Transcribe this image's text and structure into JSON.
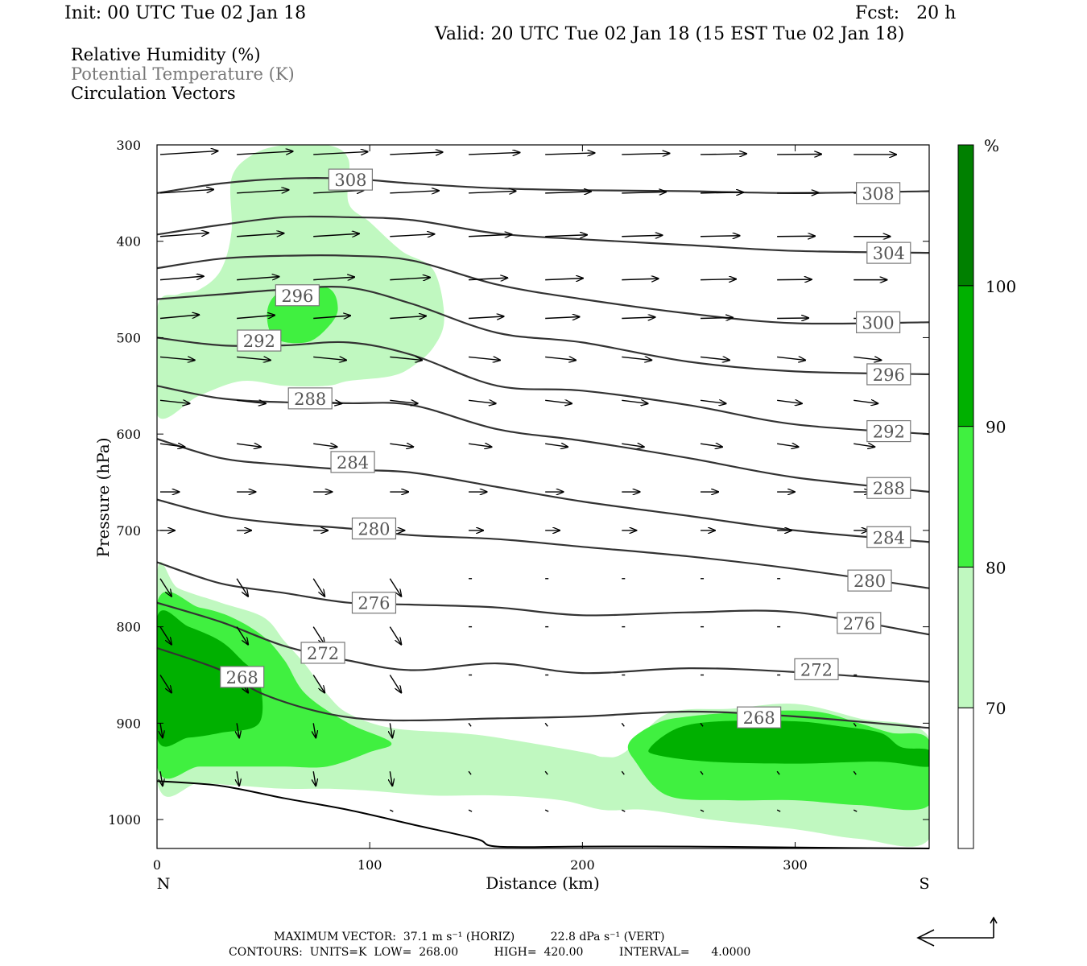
{
  "header": {
    "init": "Init: 00 UTC Tue 02 Jan 18",
    "fcst": "Fcst:   20 h",
    "valid": "Valid: 20 UTC Tue 02 Jan 18 (15 EST Tue 02 Jan 18)"
  },
  "legend": {
    "line1": "Relative Humidity (%)",
    "line2": "Potential Temperature (K)",
    "line3": "Circulation Vectors"
  },
  "footer": {
    "line1": "MAXIMUM VECTOR:  37.1 m s⁻¹ (HORIZ)          22.8 dPa s⁻¹ (VERT)",
    "line2": "CONTOURS:  UNITS=K  LOW=  268.00          HIGH=  420.00          INTERVAL=      4.0000"
  },
  "colors": {
    "rh_70": "#c0f8c0",
    "rh_80": "#40f040",
    "rh_90": "#00b000",
    "rh_100": "#008000",
    "theta_line": "#333333"
  },
  "chart_data": {
    "type": "cross-section",
    "xlabel": "Distance (km)",
    "ylabel": "Pressure (hPa)",
    "xlim": [
      0,
      363
    ],
    "ylim": [
      1030,
      300
    ],
    "x_ticks": [
      0,
      100,
      200,
      300
    ],
    "y_ticks": [
      300,
      400,
      500,
      600,
      700,
      800,
      900,
      1000
    ],
    "x_end_labels": {
      "left": "N",
      "right": "S"
    },
    "colorbar": {
      "unit": "%",
      "levels": [
        70,
        80,
        90,
        100
      ]
    },
    "theta_contours": [
      {
        "k": 268,
        "x": [
          0,
          30,
          50,
          80,
          110,
          160,
          200,
          250,
          300,
          363
        ],
        "p": [
          822,
          845,
          870,
          890,
          897,
          895,
          893,
          888,
          893,
          905
        ],
        "label": {
          "text": "268",
          "x": 283,
          "p": 894
        }
      },
      {
        "k": 272,
        "x": [
          0,
          30,
          60,
          90,
          120,
          160,
          200,
          250,
          300,
          363
        ],
        "p": [
          775,
          795,
          820,
          835,
          845,
          838,
          848,
          843,
          847,
          857
        ],
        "label": {
          "text": "272",
          "x": 310,
          "p": 844
        }
      },
      {
        "k": 276,
        "x": [
          0,
          30,
          60,
          90,
          120,
          160,
          200,
          250,
          300,
          363
        ],
        "p": [
          733,
          755,
          765,
          775,
          777,
          780,
          788,
          785,
          785,
          808
        ],
        "label": {
          "text": "276",
          "x": 330,
          "p": 796
        }
      },
      {
        "k": 280,
        "x": [
          0,
          30,
          60,
          90,
          120,
          160,
          200,
          250,
          300,
          363
        ],
        "p": [
          668,
          685,
          693,
          698,
          705,
          709,
          717,
          727,
          740,
          760
        ],
        "label": {
          "text": "280",
          "x": 335,
          "p": 752
        }
      },
      {
        "k": 284,
        "x": [
          0,
          30,
          60,
          90,
          120,
          160,
          200,
          250,
          300,
          363
        ],
        "p": [
          605,
          625,
          632,
          637,
          640,
          655,
          670,
          685,
          700,
          712
        ],
        "label": {
          "text": "284",
          "x": 344,
          "p": 707
        }
      },
      {
        "k": 288,
        "x": [
          0,
          30,
          60,
          90,
          120,
          160,
          200,
          250,
          300,
          363
        ],
        "p": [
          550,
          563,
          567,
          568,
          570,
          595,
          607,
          625,
          645,
          660
        ],
        "label": {
          "text": "288",
          "x": 344,
          "p": 656
        }
      },
      {
        "k": 292,
        "x": [
          0,
          30,
          60,
          90,
          120,
          160,
          200,
          250,
          300,
          363
        ],
        "p": [
          500,
          508,
          508,
          505,
          518,
          550,
          555,
          570,
          590,
          600
        ],
        "label": {
          "text": "292",
          "x": 344,
          "p": 597
        }
      },
      {
        "k": 296,
        "x": [
          0,
          30,
          60,
          90,
          120,
          160,
          200,
          250,
          300,
          363
        ],
        "p": [
          460,
          455,
          450,
          448,
          465,
          495,
          505,
          525,
          535,
          538
        ],
        "label": {
          "text": "296",
          "x": 344,
          "p": 538
        }
      },
      {
        "k": 300,
        "x": [
          0,
          30,
          60,
          90,
          120,
          160,
          200,
          250,
          300,
          363
        ],
        "p": [
          428,
          418,
          415,
          415,
          420,
          445,
          460,
          475,
          485,
          484
        ],
        "label": {
          "text": "300",
          "x": 339,
          "p": 484
        }
      },
      {
        "k": 304,
        "x": [
          0,
          30,
          60,
          90,
          120,
          160,
          200,
          250,
          300,
          363
        ],
        "p": [
          393,
          383,
          375,
          375,
          378,
          392,
          398,
          404,
          410,
          412
        ],
        "label": {
          "text": "304",
          "x": 344,
          "p": 412
        }
      },
      {
        "k": 308,
        "x": [
          0,
          30,
          60,
          90,
          120,
          160,
          200,
          250,
          300,
          363
        ],
        "p": [
          350,
          340,
          335,
          335,
          340,
          345,
          347,
          348,
          350,
          348
        ],
        "label": {
          "text": "308",
          "x": 339,
          "p": 350
        }
      }
    ],
    "theta_labels_extra": [
      {
        "text": "308",
        "x": 91,
        "p": 336
      },
      {
        "text": "296",
        "x": 66,
        "p": 456
      },
      {
        "text": "292",
        "x": 48,
        "p": 503
      },
      {
        "text": "288",
        "x": 72,
        "p": 563
      },
      {
        "text": "284",
        "x": 92,
        "p": 629
      },
      {
        "text": "280",
        "x": 102,
        "p": 698
      },
      {
        "text": "276",
        "x": 102,
        "p": 775
      },
      {
        "text": "272",
        "x": 78,
        "p": 827
      },
      {
        "text": "268",
        "x": 40,
        "p": 852
      }
    ],
    "terrain": {
      "x": [
        0,
        30,
        60,
        90,
        120,
        150,
        160,
        200,
        250,
        300,
        363
      ],
      "p": [
        960,
        965,
        978,
        990,
        1005,
        1020,
        1028,
        1028,
        1028,
        1029,
        1030
      ]
    },
    "rh_regions": [
      {
        "level": 70,
        "x": [
          0,
          10,
          30,
          50,
          60,
          70,
          80,
          90,
          110,
          140,
          160,
          200,
          210,
          220,
          240,
          270,
          300,
          330,
          363,
          363,
          330,
          300,
          260,
          230,
          210,
          190,
          160,
          130,
          100,
          80,
          60,
          40,
          20,
          0
        ],
        "p": [
          745,
          760,
          775,
          790,
          815,
          840,
          870,
          890,
          905,
          910,
          915,
          930,
          935,
          930,
          890,
          885,
          880,
          895,
          915,
          1020,
          1020,
          1010,
          1000,
          990,
          990,
          980,
          975,
          975,
          970,
          968,
          968,
          965,
          962,
          960
        ]
      },
      {
        "level": 80,
        "x": [
          0,
          20,
          35,
          50,
          60,
          70,
          90,
          110,
          100,
          80,
          60,
          40,
          20,
          0
        ],
        "p": [
          775,
          780,
          790,
          810,
          835,
          870,
          900,
          920,
          930,
          945,
          945,
          945,
          945,
          945
        ]
      },
      {
        "level": 80,
        "x": [
          222,
          235,
          250,
          280,
          310,
          330,
          345,
          363,
          363,
          330,
          300,
          270,
          240,
          225
        ],
        "p": [
          920,
          900,
          893,
          888,
          888,
          900,
          910,
          918,
          985,
          985,
          980,
          980,
          975,
          940
        ]
      },
      {
        "level": 90,
        "x": [
          0,
          15,
          30,
          40,
          48,
          48,
          30,
          15,
          0
        ],
        "p": [
          790,
          800,
          815,
          835,
          855,
          900,
          910,
          915,
          915
        ]
      },
      {
        "level": 90,
        "x": [
          232,
          245,
          265,
          300,
          320,
          340,
          350,
          363,
          363,
          340,
          300,
          260,
          235
        ],
        "p": [
          925,
          905,
          898,
          898,
          903,
          910,
          925,
          928,
          945,
          940,
          942,
          940,
          933
        ]
      },
      {
        "level": 70,
        "x": [
          35,
          45,
          60,
          80,
          90,
          90,
          100,
          115,
          130,
          135,
          130,
          120,
          110,
          90,
          80,
          60,
          40,
          20,
          0,
          0,
          10,
          20,
          30,
          35
        ],
        "p": [
          335,
          310,
          300,
          300,
          315,
          360,
          380,
          410,
          430,
          480,
          510,
          530,
          540,
          545,
          550,
          550,
          545,
          560,
          580,
          470,
          455,
          450,
          430,
          390
        ]
      },
      {
        "level": 80,
        "x": [
          52,
          60,
          80,
          85,
          80,
          70,
          55
        ],
        "p": [
          470,
          450,
          448,
          470,
          490,
          505,
          500
        ]
      }
    ]
  }
}
